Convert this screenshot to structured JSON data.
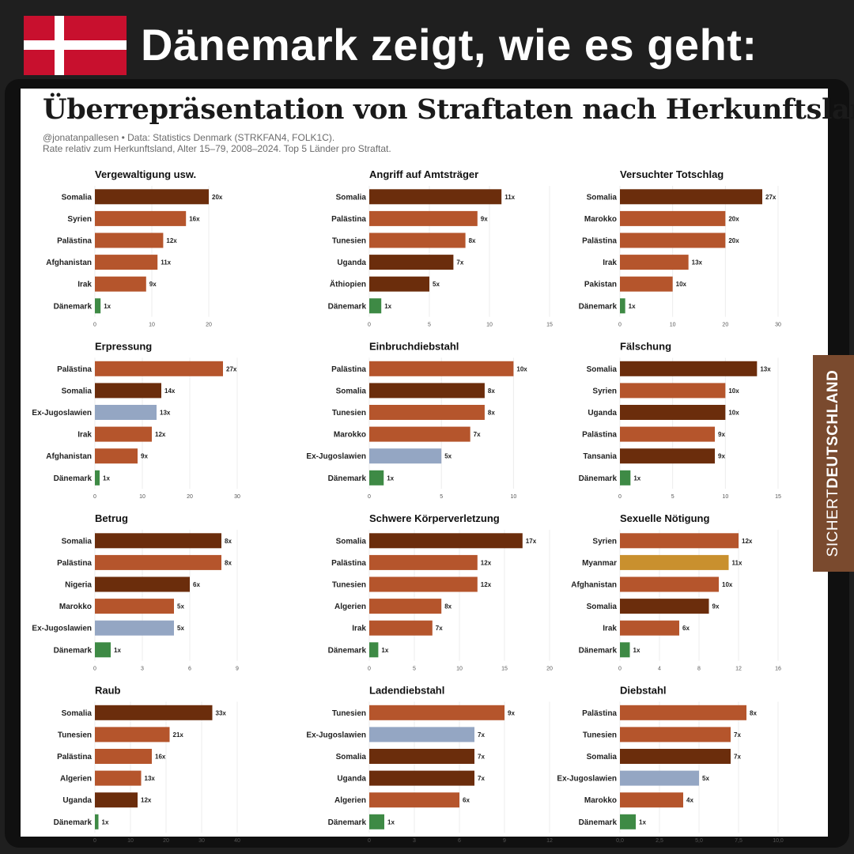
{
  "header": {
    "headline": "Dänemark zeigt, wie es geht:",
    "flag_colors": {
      "red": "#c8102e",
      "white": "#ffffff"
    }
  },
  "infographic": {
    "title": "Überrepräsentation von Straftaten nach Herkunftsland",
    "source": "@jonatanpallesen • Data: Statistics Denmark (STRKFAN4, FOLK1C).",
    "note": "Rate relativ zum Herkunftsland, Alter 15–79, 2008–2024. Top 5 Länder pro Straftat."
  },
  "brand": {
    "light": "SICHERT",
    "bold": "DEUTSCHLAND",
    "color": "#7a4a2e"
  },
  "colors": {
    "dark_brown": "#6b2d0c",
    "rust": "#b5552c",
    "steel": "#94a6c3",
    "mustard": "#c9902e",
    "green": "#3e8a45"
  },
  "chart_data": [
    {
      "type": "bar",
      "title": "Vergewaltigung usw.",
      "categories": [
        "Somalia",
        "Syrien",
        "Palästina",
        "Afghanistan",
        "Irak",
        "Dänemark"
      ],
      "values": [
        20,
        16,
        12,
        11,
        9,
        1
      ],
      "value_labels": [
        "20x",
        "16x",
        "12x",
        "11x",
        "9x",
        "1x"
      ],
      "colors": [
        "dark_brown",
        "rust",
        "rust",
        "rust",
        "rust",
        "green"
      ],
      "xticks": [
        0,
        10,
        20
      ],
      "tick_labels": [
        "0",
        "10",
        "20"
      ],
      "xlim": [
        0,
        25
      ]
    },
    {
      "type": "bar",
      "title": "Angriff auf Amtsträger",
      "categories": [
        "Somalia",
        "Palästina",
        "Tunesien",
        "Uganda",
        "Äthiopien",
        "Dänemark"
      ],
      "values": [
        11,
        9,
        8,
        7,
        5,
        1
      ],
      "value_labels": [
        "11x",
        "9x",
        "8x",
        "7x",
        "5x",
        "1x"
      ],
      "colors": [
        "dark_brown",
        "rust",
        "rust",
        "dark_brown",
        "dark_brown",
        "green"
      ],
      "xticks": [
        0,
        5,
        10,
        15
      ],
      "tick_labels": [
        "0",
        "5",
        "10",
        "15"
      ],
      "xlim": [
        0,
        15
      ]
    },
    {
      "type": "bar",
      "title": "Versuchter Totschlag",
      "categories": [
        "Somalia",
        "Marokko",
        "Palästina",
        "Irak",
        "Pakistan",
        "Dänemark"
      ],
      "values": [
        27,
        20,
        20,
        13,
        10,
        1
      ],
      "value_labels": [
        "27x",
        "20x",
        "20x",
        "13x",
        "10x",
        "1x"
      ],
      "colors": [
        "dark_brown",
        "rust",
        "rust",
        "rust",
        "rust",
        "green"
      ],
      "xticks": [
        0,
        10,
        20,
        30
      ],
      "tick_labels": [
        "0",
        "10",
        "20",
        "30"
      ],
      "xlim": [
        0,
        30
      ]
    },
    {
      "type": "bar",
      "title": "Erpressung",
      "categories": [
        "Palästina",
        "Somalia",
        "Ex-Jugoslawien",
        "Irak",
        "Afghanistan",
        "Dänemark"
      ],
      "values": [
        27,
        14,
        13,
        12,
        9,
        1
      ],
      "value_labels": [
        "27x",
        "14x",
        "13x",
        "12x",
        "9x",
        "1x"
      ],
      "colors": [
        "rust",
        "dark_brown",
        "steel",
        "rust",
        "rust",
        "green"
      ],
      "xticks": [
        0,
        10,
        20,
        30
      ],
      "tick_labels": [
        "0",
        "10",
        "20",
        "30"
      ],
      "xlim": [
        0,
        30
      ]
    },
    {
      "type": "bar",
      "title": "Einbruchdiebstahl",
      "categories": [
        "Palästina",
        "Somalia",
        "Tunesien",
        "Marokko",
        "Ex-Jugoslawien",
        "Dänemark"
      ],
      "values": [
        10,
        8,
        8,
        7,
        5,
        1
      ],
      "value_labels": [
        "10x",
        "8x",
        "8x",
        "7x",
        "5x",
        "1x"
      ],
      "colors": [
        "rust",
        "dark_brown",
        "rust",
        "rust",
        "steel",
        "green"
      ],
      "xticks": [
        0,
        5,
        10
      ],
      "tick_labels": [
        "0",
        "5",
        "10"
      ],
      "xlim": [
        0,
        12.5
      ]
    },
    {
      "type": "bar",
      "title": "Fälschung",
      "categories": [
        "Somalia",
        "Syrien",
        "Uganda",
        "Palästina",
        "Tansania",
        "Dänemark"
      ],
      "values": [
        13,
        10,
        10,
        9,
        9,
        1
      ],
      "value_labels": [
        "13x",
        "10x",
        "10x",
        "9x",
        "9x",
        "1x"
      ],
      "colors": [
        "dark_brown",
        "rust",
        "dark_brown",
        "rust",
        "dark_brown",
        "green"
      ],
      "xticks": [
        0,
        5,
        10,
        15
      ],
      "tick_labels": [
        "0",
        "5",
        "10",
        "15"
      ],
      "xlim": [
        0,
        15
      ]
    },
    {
      "type": "bar",
      "title": "Betrug",
      "categories": [
        "Somalia",
        "Palästina",
        "Nigeria",
        "Marokko",
        "Ex-Jugoslawien",
        "Dänemark"
      ],
      "values": [
        8,
        8,
        6,
        5,
        5,
        1
      ],
      "value_labels": [
        "8x",
        "8x",
        "6x",
        "5x",
        "5x",
        "1x"
      ],
      "colors": [
        "dark_brown",
        "rust",
        "dark_brown",
        "rust",
        "steel",
        "green"
      ],
      "xticks": [
        0,
        3,
        6,
        9
      ],
      "tick_labels": [
        "0",
        "3",
        "6",
        "9"
      ],
      "xlim": [
        0,
        9
      ]
    },
    {
      "type": "bar",
      "title": "Schwere Körperverletzung",
      "categories": [
        "Somalia",
        "Palästina",
        "Tunesien",
        "Algerien",
        "Irak",
        "Dänemark"
      ],
      "values": [
        17,
        12,
        12,
        8,
        7,
        1
      ],
      "value_labels": [
        "17x",
        "12x",
        "12x",
        "8x",
        "7x",
        "1x"
      ],
      "colors": [
        "dark_brown",
        "rust",
        "rust",
        "rust",
        "rust",
        "green"
      ],
      "xticks": [
        0,
        5,
        10,
        15,
        20
      ],
      "tick_labels": [
        "0",
        "5",
        "10",
        "15",
        "20"
      ],
      "xlim": [
        0,
        20
      ]
    },
    {
      "type": "bar",
      "title": "Sexuelle Nötigung",
      "categories": [
        "Syrien",
        "Myanmar",
        "Afghanistan",
        "Somalia",
        "Irak",
        "Dänemark"
      ],
      "values": [
        12,
        11,
        10,
        9,
        6,
        1
      ],
      "value_labels": [
        "12x",
        "11x",
        "10x",
        "9x",
        "6x",
        "1x"
      ],
      "colors": [
        "rust",
        "mustard",
        "rust",
        "dark_brown",
        "rust",
        "green"
      ],
      "xticks": [
        0,
        4,
        8,
        12,
        16
      ],
      "tick_labels": [
        "0",
        "4",
        "8",
        "12",
        "16"
      ],
      "xlim": [
        0,
        16
      ]
    },
    {
      "type": "bar",
      "title": "Raub",
      "categories": [
        "Somalia",
        "Tunesien",
        "Palästina",
        "Algerien",
        "Uganda",
        "Dänemark"
      ],
      "values": [
        33,
        21,
        16,
        13,
        12,
        1
      ],
      "value_labels": [
        "33x",
        "21x",
        "16x",
        "13x",
        "12x",
        "1x"
      ],
      "colors": [
        "dark_brown",
        "rust",
        "rust",
        "rust",
        "dark_brown",
        "green"
      ],
      "xticks": [
        0,
        10,
        20,
        30,
        40
      ],
      "tick_labels": [
        "0",
        "10",
        "20",
        "30",
        "40"
      ],
      "xlim": [
        0,
        40
      ]
    },
    {
      "type": "bar",
      "title": "Ladendiebstahl",
      "categories": [
        "Tunesien",
        "Ex-Jugoslawien",
        "Somalia",
        "Uganda",
        "Algerien",
        "Dänemark"
      ],
      "values": [
        9,
        7,
        7,
        7,
        6,
        1
      ],
      "value_labels": [
        "9x",
        "7x",
        "7x",
        "7x",
        "6x",
        "1x"
      ],
      "colors": [
        "rust",
        "steel",
        "dark_brown",
        "dark_brown",
        "rust",
        "green"
      ],
      "xticks": [
        0,
        3,
        6,
        9,
        12
      ],
      "tick_labels": [
        "0",
        "3",
        "6",
        "9",
        "12"
      ],
      "xlim": [
        0,
        12
      ]
    },
    {
      "type": "bar",
      "title": "Diebstahl",
      "categories": [
        "Palästina",
        "Tunesien",
        "Somalia",
        "Ex-Jugoslawien",
        "Marokko",
        "Dänemark"
      ],
      "values": [
        8,
        7,
        7,
        5,
        4,
        1
      ],
      "value_labels": [
        "8x",
        "7x",
        "7x",
        "5x",
        "4x",
        "1x"
      ],
      "colors": [
        "rust",
        "rust",
        "dark_brown",
        "steel",
        "rust",
        "green"
      ],
      "xticks": [
        0,
        2.5,
        5,
        7.5,
        10
      ],
      "tick_labels": [
        "0,0",
        "2,5",
        "5,0",
        "7,5",
        "10,0"
      ],
      "xlim": [
        0,
        10
      ]
    }
  ]
}
